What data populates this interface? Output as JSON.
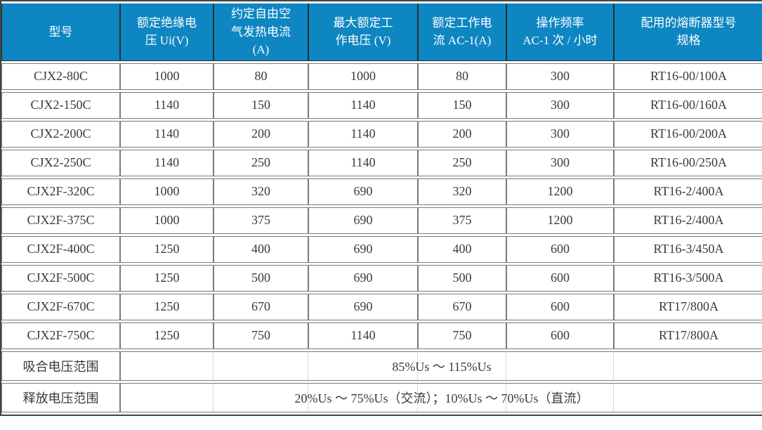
{
  "chart_data": {
    "type": "table",
    "title": "",
    "columns": [
      {
        "label": "型号"
      },
      {
        "label": "额定绝缘电\n压 Ui(V)"
      },
      {
        "label": "约定自由空\n气发热电流\n(A)"
      },
      {
        "label": "最大额定工\n作电压 (V)"
      },
      {
        "label": "额定工作电\n流 AC-1(A)"
      },
      {
        "label": "操作频率\nAC-1 次 / 小时"
      },
      {
        "label": "配用的熔断器型号\n规格"
      }
    ],
    "rows": [
      [
        "CJX2-80C",
        "1000",
        "80",
        "1000",
        "80",
        "300",
        "RT16-00/100A"
      ],
      [
        "CJX2-150C",
        "1140",
        "150",
        "1140",
        "150",
        "300",
        "RT16-00/160A"
      ],
      [
        "CJX2-200C",
        "1140",
        "200",
        "1140",
        "200",
        "300",
        "RT16-00/200A"
      ],
      [
        "CJX2-250C",
        "1140",
        "250",
        "1140",
        "250",
        "300",
        "RT16-00/250A"
      ],
      [
        "CJX2F-320C",
        "1000",
        "320",
        "690",
        "320",
        "1200",
        "RT16-2/400A"
      ],
      [
        "CJX2F-375C",
        "1000",
        "375",
        "690",
        "375",
        "1200",
        "RT16-2/400A"
      ],
      [
        "CJX2F-400C",
        "1250",
        "400",
        "690",
        "400",
        "600",
        "RT16-3/450A"
      ],
      [
        "CJX2F-500C",
        "1250",
        "500",
        "690",
        "500",
        "600",
        "RT16-3/500A"
      ],
      [
        "CJX2F-670C",
        "1250",
        "670",
        "690",
        "670",
        "600",
        "RT17/800A"
      ],
      [
        "CJX2F-750C",
        "1250",
        "750",
        "1140",
        "750",
        "600",
        "RT17/800A"
      ]
    ],
    "footer_rows": [
      {
        "label": "吸合电压范围",
        "value": "85%Us ～ 115%Us"
      },
      {
        "label": "释放电压范围",
        "value": "20%Us ～ 75%Us（交流）；10%Us ～ 70%Us（直流）"
      }
    ],
    "layout_hints": {
      "header_position": "top",
      "grid": "on",
      "merged_footer_value_spans_columns": "2-7"
    }
  },
  "colors": {
    "header_bg": "#0e86c2",
    "header_text": "#ffffff",
    "header_separator": "#2b2b2b",
    "body_text": "#3a3a3a",
    "grid_line": "#7a7a7a",
    "outer_border": "#454545",
    "faint_divider": "#d9d9d9",
    "cell_bg": "#ffffff"
  }
}
